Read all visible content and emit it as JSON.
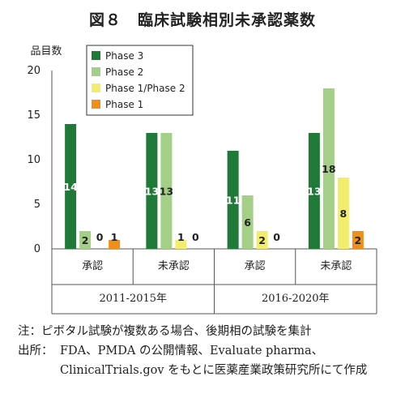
{
  "title": "図８　臨床試験相別未承認薬数",
  "chart_data": {
    "type": "bar",
    "ylabel": "品目数",
    "ylim": [
      0,
      20
    ],
    "yticks": [
      0,
      5,
      10,
      15,
      20
    ],
    "grid": false,
    "legend_position": "top-center",
    "groups": [
      {
        "name": "2011-2015年",
        "categories": [
          "承認",
          "未承認"
        ]
      },
      {
        "name": "2016-2020年",
        "categories": [
          "承認",
          "未承認"
        ]
      }
    ],
    "series": [
      {
        "name": "Phase 3",
        "color": "#1e7a36",
        "values": [
          14,
          13,
          11,
          13
        ]
      },
      {
        "name": "Phase 2",
        "color": "#a3cf87",
        "values": [
          2,
          13,
          6,
          18
        ]
      },
      {
        "name": "Phase 1/Phase 2",
        "color": "#f2ee6b",
        "values": [
          0,
          1,
          2,
          8
        ]
      },
      {
        "name": "Phase 1",
        "color": "#ef8f1a",
        "values": [
          1,
          0,
          0,
          2
        ]
      }
    ]
  },
  "notes": {
    "note": "注：ピボタル試験が複数ある場合、後期相の試験を集計",
    "source_label": "出所：",
    "source_text": "FDA、PMDA の公開情報、Evaluate pharma、ClinicalTrials.gov をもとに医薬産業政策研究所にて作成"
  }
}
